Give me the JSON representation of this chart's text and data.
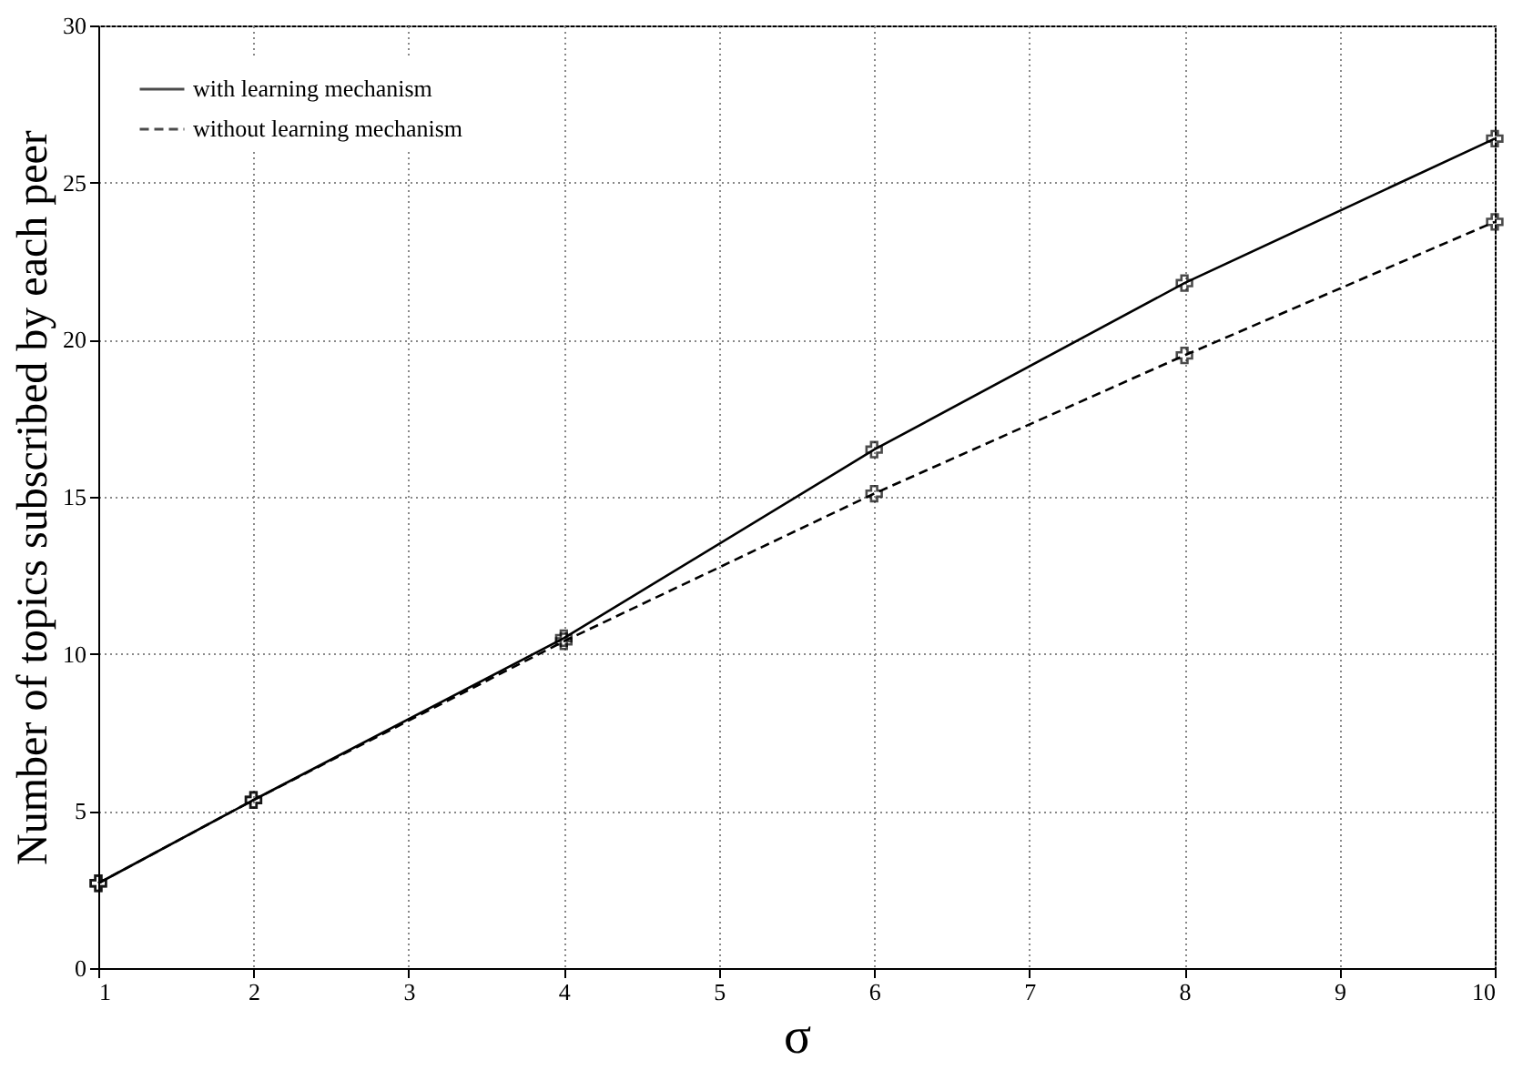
{
  "chart_data": {
    "type": "line",
    "xlabel": "σ",
    "ylabel": "Number of topics subscribed by each peer",
    "x": [
      1,
      2,
      4,
      6,
      8,
      10
    ],
    "series": [
      {
        "name": "with learning mechanism",
        "color": "#000000",
        "line_style": "solid",
        "values": [
          2.7,
          5.35,
          10.5,
          16.5,
          21.8,
          26.4
        ]
      },
      {
        "name": "without learning mechanism",
        "color": "#000000",
        "line_style": "dashed",
        "values": [
          2.7,
          5.35,
          10.4,
          15.1,
          19.5,
          23.75
        ]
      }
    ],
    "xlim": [
      1,
      10
    ],
    "xticks": [
      1,
      2,
      3,
      4,
      5,
      6,
      7,
      8,
      9,
      10
    ],
    "ylim": [
      0,
      30
    ],
    "yticks": [
      0,
      5,
      10,
      15,
      20,
      25,
      30
    ],
    "grid": true,
    "legend": "top left",
    "marker": "cross"
  }
}
